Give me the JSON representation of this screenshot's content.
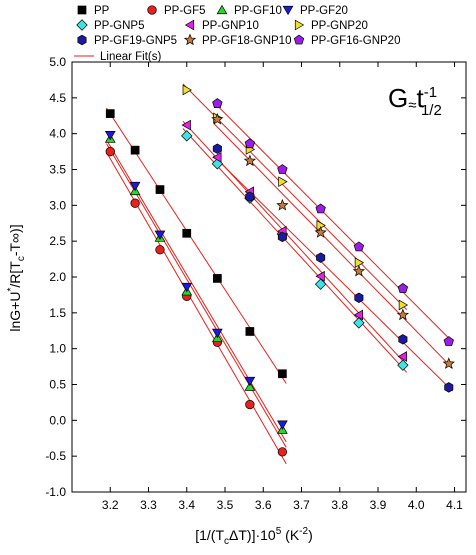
{
  "chart_data": {
    "type": "scatter",
    "xlabel": "[1/(T",
    "xlabel_sub": "c",
    "xlabel_mid": "ΔT)]·10",
    "xlabel_sup": "5",
    "xlabel_unit": " (K",
    "xlabel_unit_sup": "-2",
    "xlabel_end": ")",
    "ylabel": "lnG+U",
    "ylabel_sup": "*",
    "ylabel_mid": "/R[T",
    "ylabel_sub": "c",
    "ylabel_end": "-T∞)]",
    "annotation": {
      "base": "G",
      "approx": "≈",
      "t": "t",
      "sup": "-1",
      "sub": "1/2"
    },
    "xlim": [
      3.1,
      4.13
    ],
    "ylim": [
      -1.0,
      5.0
    ],
    "x_ticks": [
      "3.2",
      "3.3",
      "3.4",
      "3.5",
      "3.6",
      "3.7",
      "3.8",
      "3.9",
      "4.0",
      "4.1"
    ],
    "y_ticks": [
      "-1.0",
      "-0.5",
      "0.0",
      "0.5",
      "1.0",
      "1.5",
      "2.0",
      "2.5",
      "3.0",
      "3.5",
      "4.0",
      "4.5",
      "5.0"
    ],
    "fit_legend": "Linear Fit(s)",
    "fit_color": "#e8211c",
    "series": [
      {
        "name": "PP",
        "marker": "square",
        "color": "#000000",
        "x": [
          3.2,
          3.265,
          3.33,
          3.4,
          3.48,
          3.565,
          3.65
        ],
        "y": [
          4.28,
          3.77,
          3.22,
          2.61,
          1.98,
          1.24,
          0.65
        ]
      },
      {
        "name": "PP-GF5",
        "marker": "circle",
        "color": "#e8211c",
        "x": [
          3.2,
          3.265,
          3.33,
          3.4,
          3.48,
          3.565,
          3.65
        ],
        "y": [
          3.75,
          3.03,
          2.38,
          1.73,
          1.09,
          0.22,
          -0.44
        ]
      },
      {
        "name": "PP-GF10",
        "marker": "triangle-up",
        "color": "#27d827",
        "x": [
          3.2,
          3.265,
          3.33,
          3.4,
          3.48,
          3.565,
          3.65
        ],
        "y": [
          3.93,
          3.2,
          2.55,
          1.8,
          1.15,
          0.47,
          -0.13
        ]
      },
      {
        "name": "PP-GF20",
        "marker": "triangle-down",
        "color": "#1a1ae6",
        "x": [
          3.2,
          3.265,
          3.33,
          3.4,
          3.48,
          3.565,
          3.65
        ],
        "y": [
          3.98,
          3.27,
          2.59,
          1.86,
          1.22,
          0.55,
          -0.06
        ]
      },
      {
        "name": "PP-GNP5",
        "marker": "diamond",
        "color": "#3fe3e3",
        "x": [
          3.4,
          3.48,
          3.565,
          3.65,
          3.75,
          3.85,
          3.965
        ],
        "y": [
          3.97,
          3.58,
          3.1,
          2.6,
          1.9,
          1.36,
          0.77
        ]
      },
      {
        "name": "PP-GNP10",
        "marker": "triangle-left",
        "color": "#e61ee6",
        "x": [
          3.4,
          3.48,
          3.565,
          3.65,
          3.75,
          3.85,
          3.965
        ],
        "y": [
          4.12,
          3.67,
          3.19,
          2.64,
          2.01,
          1.47,
          0.89
        ]
      },
      {
        "name": "PP-GNP20",
        "marker": "triangle-right",
        "color": "#f2e21c",
        "x": [
          3.4,
          3.48,
          3.565,
          3.65,
          3.75,
          3.85,
          3.965
        ],
        "y": [
          4.61,
          4.22,
          3.78,
          3.33,
          2.72,
          2.2,
          1.61
        ]
      },
      {
        "name": "PP-GF19-GNP5",
        "marker": "hexagon",
        "color": "#1a1a9e",
        "x": [
          3.48,
          3.565,
          3.65,
          3.75,
          3.85,
          3.965,
          4.085
        ],
        "y": [
          3.79,
          3.12,
          2.56,
          2.27,
          1.71,
          1.13,
          0.46
        ]
      },
      {
        "name": "PP-GF18-GNP10",
        "marker": "star",
        "color": "#c97a3a",
        "x": [
          3.48,
          3.565,
          3.65,
          3.75,
          3.85,
          3.965,
          4.085
        ],
        "y": [
          4.2,
          3.62,
          3.0,
          2.62,
          2.08,
          1.47,
          0.79
        ]
      },
      {
        "name": "PP-GF16-GNP20",
        "marker": "pentagon",
        "color": "#9a1ee6",
        "x": [
          3.48,
          3.565,
          3.65,
          3.75,
          3.85,
          3.965,
          4.085
        ],
        "y": [
          4.42,
          3.86,
          3.5,
          2.95,
          2.42,
          1.84,
          1.1
        ]
      }
    ]
  }
}
